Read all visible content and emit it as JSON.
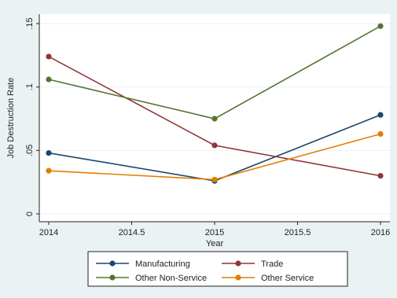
{
  "chart_data": {
    "type": "line",
    "title": "",
    "xlabel": "Year",
    "ylabel": "Job Destruction Rate",
    "x": [
      2014,
      2015,
      2016
    ],
    "xlim": [
      2014,
      2016
    ],
    "ylim": [
      0,
      0.15
    ],
    "x_ticks": [
      2014,
      2014.5,
      2015,
      2015.5,
      2016
    ],
    "x_tick_labels": [
      "2014",
      "2014.5",
      "2015",
      "2015.5",
      "2016"
    ],
    "y_ticks": [
      0,
      0.05,
      0.1,
      0.15
    ],
    "y_tick_labels": [
      "0",
      ".05",
      ".1",
      ".15"
    ],
    "grid": true,
    "legend_position": "bottom",
    "series": [
      {
        "name": "Manufacturing",
        "color": "#1a476f",
        "values": [
          0.048,
          0.026,
          0.078
        ]
      },
      {
        "name": "Trade",
        "color": "#90353b",
        "values": [
          0.124,
          0.054,
          0.03
        ]
      },
      {
        "name": "Other Non-Service",
        "color": "#55752f",
        "values": [
          0.106,
          0.075,
          0.148
        ]
      },
      {
        "name": "Other Service",
        "color": "#e37e00",
        "values": [
          0.034,
          0.027,
          0.063
        ]
      }
    ]
  }
}
